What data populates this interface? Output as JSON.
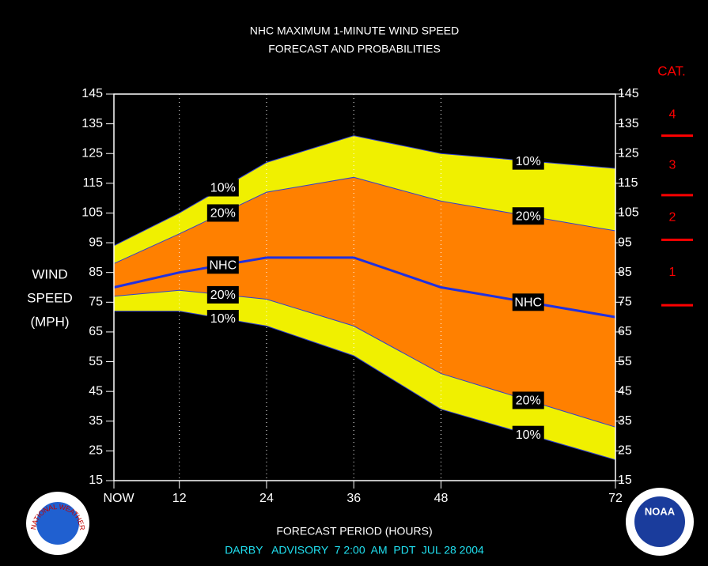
{
  "chart_data": {
    "type": "band",
    "title": [
      "NHC MAXIMUM 1-MINUTE WIND SPEED",
      "FORECAST AND PROBABILITIES"
    ],
    "xlabel": "FORECAST PERIOD (HOURS)",
    "ylabel": [
      "WIND",
      "SPEED",
      "(MPH)"
    ],
    "footer": "DARBY   ADVISORY  7 2:00  AM  PDT  JUL 28 2004",
    "x": [
      3,
      12,
      24,
      36,
      48,
      72
    ],
    "xlim": [
      3,
      72
    ],
    "xticks": [
      {
        "value": 3,
        "label": "NOW"
      },
      12,
      24,
      36,
      48,
      72
    ],
    "ylim": [
      15,
      145
    ],
    "yticks": [
      15,
      25,
      35,
      45,
      55,
      65,
      75,
      85,
      95,
      105,
      115,
      125,
      135,
      145
    ],
    "grid": true,
    "series": [
      {
        "name": "10%",
        "color": "#f0f000",
        "values": [
          94,
          105,
          122,
          131,
          125,
          120
        ]
      },
      {
        "name": "20%",
        "color": "#ff8000",
        "values": [
          88,
          98,
          112,
          117,
          109,
          99
        ]
      },
      {
        "name": "NHC",
        "color": "#2030e0",
        "values": [
          80,
          85,
          90,
          90,
          80,
          70
        ]
      },
      {
        "name": "20%",
        "color": "#ff8000",
        "values": [
          77,
          79,
          76,
          67,
          51,
          33
        ]
      },
      {
        "name": "10%",
        "color": "#f0f000",
        "values": [
          72,
          72,
          67,
          57,
          39,
          22
        ]
      }
    ],
    "category_scale": {
      "title": "CAT.",
      "color": "#ff0000",
      "labels": [
        "1",
        "2",
        "3",
        "4"
      ],
      "thresholds": [
        74,
        96,
        111,
        131
      ]
    },
    "logos": [
      "NATIONAL WEATHER SERVICE",
      "NOAA"
    ]
  }
}
